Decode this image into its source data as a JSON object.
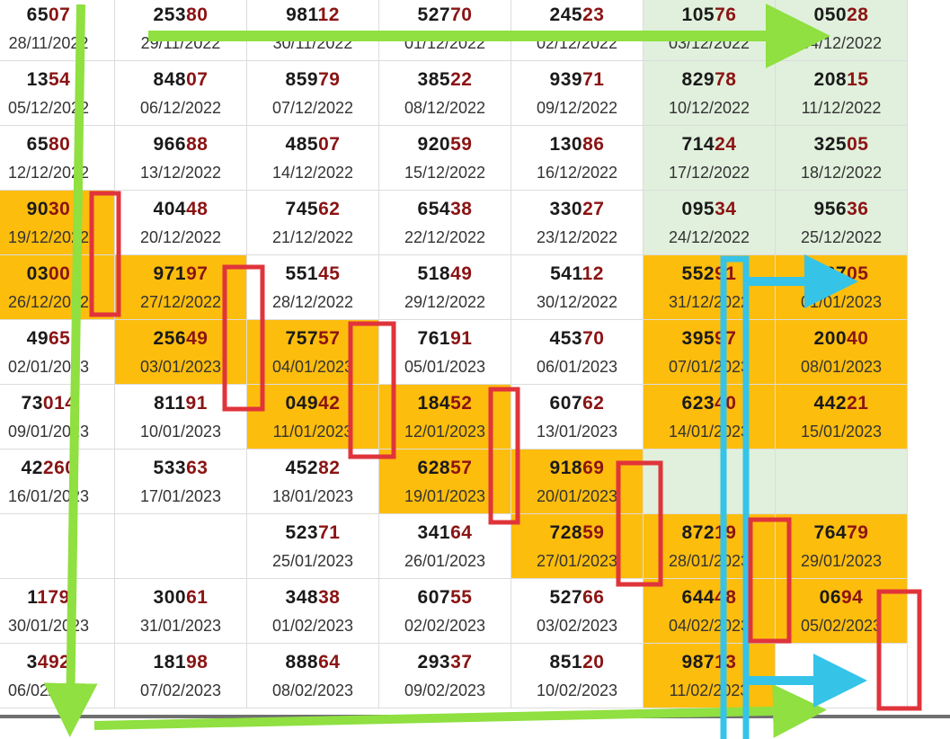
{
  "colors": {
    "green_cell": "#e0f0dc",
    "orange_cell": "#fdbd0d",
    "digit_highlight": "#8b1414",
    "green_arrow": "#8fe040",
    "blue_marker": "#35c3e8",
    "red_box": "#e0343b"
  },
  "rows": [
    [
      {
        "lead": "65",
        "last": "07",
        "date": "28/11/2022",
        "bg": ""
      },
      {
        "lead": "253",
        "last": "80",
        "date": "29/11/2022",
        "bg": ""
      },
      {
        "lead": "981",
        "last": "12",
        "date": "30/11/2022",
        "bg": ""
      },
      {
        "lead": "527",
        "last": "70",
        "date": "01/12/2022",
        "bg": ""
      },
      {
        "lead": "245",
        "last": "23",
        "date": "02/12/2022",
        "bg": ""
      },
      {
        "lead": "105",
        "last": "76",
        "date": "03/12/2022",
        "bg": "green"
      },
      {
        "lead": "050",
        "last": "28",
        "date": "04/12/2022",
        "bg": "green"
      }
    ],
    [
      {
        "lead": "13",
        "last": "54",
        "date": "05/12/2022",
        "bg": ""
      },
      {
        "lead": "848",
        "last": "07",
        "date": "06/12/2022",
        "bg": ""
      },
      {
        "lead": "859",
        "last": "79",
        "date": "07/12/2022",
        "bg": ""
      },
      {
        "lead": "385",
        "last": "22",
        "date": "08/12/2022",
        "bg": ""
      },
      {
        "lead": "939",
        "last": "71",
        "date": "09/12/2022",
        "bg": ""
      },
      {
        "lead": "829",
        "last": "78",
        "date": "10/12/2022",
        "bg": "green"
      },
      {
        "lead": "208",
        "last": "15",
        "date": "11/12/2022",
        "bg": "green"
      }
    ],
    [
      {
        "lead": "65",
        "last": "80",
        "date": "12/12/2022",
        "bg": ""
      },
      {
        "lead": "966",
        "last": "88",
        "date": "13/12/2022",
        "bg": ""
      },
      {
        "lead": "485",
        "last": "07",
        "date": "14/12/2022",
        "bg": ""
      },
      {
        "lead": "920",
        "last": "59",
        "date": "15/12/2022",
        "bg": ""
      },
      {
        "lead": "130",
        "last": "86",
        "date": "16/12/2022",
        "bg": ""
      },
      {
        "lead": "714",
        "last": "24",
        "date": "17/12/2022",
        "bg": "green"
      },
      {
        "lead": "325",
        "last": "05",
        "date": "18/12/2022",
        "bg": "green"
      }
    ],
    [
      {
        "lead": "90",
        "last": "30",
        "date": "19/12/2022",
        "bg": "orange"
      },
      {
        "lead": "404",
        "last": "48",
        "date": "20/12/2022",
        "bg": ""
      },
      {
        "lead": "745",
        "last": "62",
        "date": "21/12/2022",
        "bg": ""
      },
      {
        "lead": "654",
        "last": "38",
        "date": "22/12/2022",
        "bg": ""
      },
      {
        "lead": "330",
        "last": "27",
        "date": "23/12/2022",
        "bg": ""
      },
      {
        "lead": "095",
        "last": "34",
        "date": "24/12/2022",
        "bg": "green"
      },
      {
        "lead": "956",
        "last": "36",
        "date": "25/12/2022",
        "bg": "green"
      }
    ],
    [
      {
        "lead": "03",
        "last": "00",
        "date": "26/12/2022",
        "bg": "orange"
      },
      {
        "lead": "971",
        "last": "97",
        "date": "27/12/2022",
        "bg": "orange"
      },
      {
        "lead": "551",
        "last": "45",
        "date": "28/12/2022",
        "bg": ""
      },
      {
        "lead": "518",
        "last": "49",
        "date": "29/12/2022",
        "bg": ""
      },
      {
        "lead": "541",
        "last": "12",
        "date": "30/12/2022",
        "bg": ""
      },
      {
        "lead": "552",
        "last": "91",
        "date": "31/12/2022",
        "bg": "orange"
      },
      {
        "lead": "167",
        "last": "05",
        "date": "01/01/2023",
        "bg": "orange"
      }
    ],
    [
      {
        "lead": "49",
        "last": "65",
        "date": "02/01/2023",
        "bg": ""
      },
      {
        "lead": "256",
        "last": "49",
        "date": "03/01/2023",
        "bg": "orange"
      },
      {
        "lead": "757",
        "last": "57",
        "date": "04/01/2023",
        "bg": "orange"
      },
      {
        "lead": "761",
        "last": "91",
        "date": "05/01/2023",
        "bg": ""
      },
      {
        "lead": "453",
        "last": "70",
        "date": "06/01/2023",
        "bg": ""
      },
      {
        "lead": "395",
        "last": "97",
        "date": "07/01/2023",
        "bg": "orange"
      },
      {
        "lead": "200",
        "last": "40",
        "date": "08/01/2023",
        "bg": "orange"
      }
    ],
    [
      {
        "lead": "73",
        "last": "014",
        "date": "09/01/2023",
        "bg": ""
      },
      {
        "lead": "811",
        "last": "91",
        "date": "10/01/2023",
        "bg": ""
      },
      {
        "lead": "049",
        "last": "42",
        "date": "11/01/2023",
        "bg": "orange"
      },
      {
        "lead": "184",
        "last": "52",
        "date": "12/01/2023",
        "bg": "orange"
      },
      {
        "lead": "607",
        "last": "62",
        "date": "13/01/2023",
        "bg": ""
      },
      {
        "lead": "623",
        "last": "40",
        "date": "14/01/2023",
        "bg": "orange"
      },
      {
        "lead": "442",
        "last": "21",
        "date": "15/01/2023",
        "bg": "orange"
      }
    ],
    [
      {
        "lead": "42",
        "last": "260",
        "date": "16/01/2023",
        "bg": ""
      },
      {
        "lead": "533",
        "last": "63",
        "date": "17/01/2023",
        "bg": ""
      },
      {
        "lead": "452",
        "last": "82",
        "date": "18/01/2023",
        "bg": ""
      },
      {
        "lead": "628",
        "last": "57",
        "date": "19/01/2023",
        "bg": "orange"
      },
      {
        "lead": "918",
        "last": "69",
        "date": "20/01/2023",
        "bg": "orange"
      },
      {
        "lead": "",
        "last": "",
        "date": "",
        "bg": "green"
      },
      {
        "lead": "",
        "last": "",
        "date": "",
        "bg": "green"
      }
    ],
    [
      {
        "lead": "",
        "last": "",
        "date": "",
        "bg": ""
      },
      {
        "lead": "",
        "last": "",
        "date": "",
        "bg": ""
      },
      {
        "lead": "523",
        "last": "71",
        "date": "25/01/2023",
        "bg": ""
      },
      {
        "lead": "341",
        "last": "64",
        "date": "26/01/2023",
        "bg": ""
      },
      {
        "lead": "728",
        "last": "59",
        "date": "27/01/2023",
        "bg": "orange"
      },
      {
        "lead": "872",
        "last": "19",
        "date": "28/01/2023",
        "bg": "orange"
      },
      {
        "lead": "764",
        "last": "79",
        "date": "29/01/2023",
        "bg": "orange"
      }
    ],
    [
      {
        "lead": "1",
        "last": "179",
        "date": "30/01/2023",
        "bg": ""
      },
      {
        "lead": "300",
        "last": "61",
        "date": "31/01/2023",
        "bg": ""
      },
      {
        "lead": "348",
        "last": "38",
        "date": "01/02/2023",
        "bg": ""
      },
      {
        "lead": "607",
        "last": "55",
        "date": "02/02/2023",
        "bg": ""
      },
      {
        "lead": "527",
        "last": "66",
        "date": "03/02/2023",
        "bg": ""
      },
      {
        "lead": "644",
        "last": "48",
        "date": "04/02/2023",
        "bg": "orange"
      },
      {
        "lead": "06",
        "last": "94",
        "date": "05/02/2023",
        "bg": "orange"
      }
    ],
    [
      {
        "lead": "3",
        "last": "492",
        "date": "06/02/2023",
        "bg": ""
      },
      {
        "lead": "181",
        "last": "98",
        "date": "07/02/2023",
        "bg": ""
      },
      {
        "lead": "888",
        "last": "64",
        "date": "08/02/2023",
        "bg": ""
      },
      {
        "lead": "293",
        "last": "37",
        "date": "09/02/2023",
        "bg": ""
      },
      {
        "lead": "851",
        "last": "20",
        "date": "10/02/2023",
        "bg": ""
      },
      {
        "lead": "987",
        "last": "13",
        "date": "11/02/2023",
        "bg": "orange"
      },
      {
        "lead": "",
        "last": "",
        "date": "",
        "bg": ""
      }
    ]
  ]
}
